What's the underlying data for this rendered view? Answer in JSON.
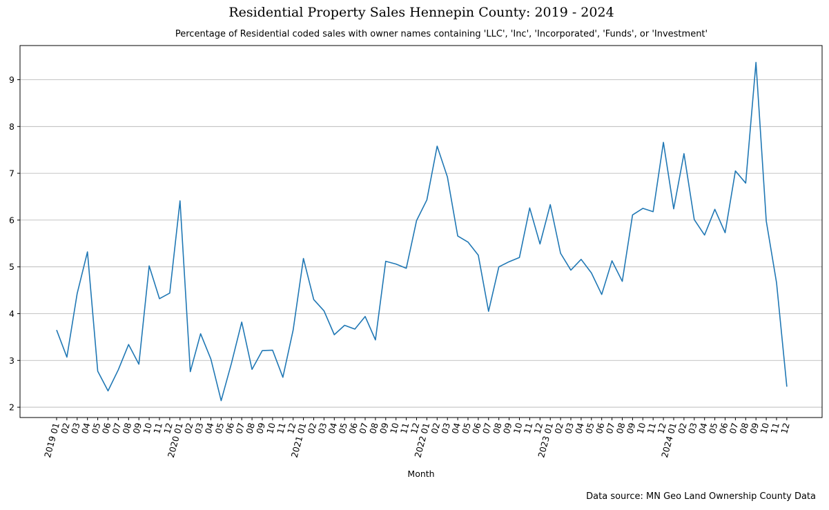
{
  "chart_data": {
    "type": "line",
    "title": "Residential Property Sales Hennepin County: 2019 - 2024",
    "subtitle": "Percentage of Residential coded sales with owner names containing 'LLC', 'Inc', 'Incorporated', 'Funds', or 'Investment'",
    "xlabel": "Month",
    "ylabel": "",
    "source": "Data source: MN Geo Land Ownership County Data",
    "grid": "horizontal",
    "ylim": [
      1.78,
      9.73
    ],
    "yticks": [
      "2",
      "3",
      "4",
      "5",
      "6",
      "7",
      "8",
      "9"
    ],
    "x": [
      "2019 01",
      "02",
      "03",
      "04",
      "05",
      "06",
      "07",
      "08",
      "09",
      "10",
      "11",
      "12",
      "2020 01",
      "02",
      "03",
      "04",
      "05",
      "06",
      "07",
      "08",
      "09",
      "10",
      "11",
      "12",
      "2021 01",
      "02",
      "03",
      "04",
      "05",
      "06",
      "07",
      "08",
      "09",
      "10",
      "11",
      "12",
      "2022 01",
      "02",
      "03",
      "04",
      "05",
      "06",
      "07",
      "08",
      "09",
      "10",
      "11",
      "12",
      "2023 01",
      "02",
      "03",
      "04",
      "05",
      "06",
      "07",
      "08",
      "09",
      "10",
      "11",
      "12",
      "2024 01",
      "02",
      "03",
      "04",
      "05",
      "06",
      "07",
      "08",
      "09",
      "10",
      "11",
      "12"
    ],
    "series": [
      {
        "color": "#1f77b4",
        "values": [
          3.65,
          3.07,
          4.43,
          5.32,
          2.77,
          2.35,
          2.8,
          3.34,
          2.92,
          5.02,
          4.32,
          4.44,
          6.41,
          2.76,
          3.57,
          3.03,
          2.14,
          2.94,
          3.82,
          2.81,
          3.21,
          3.22,
          2.64,
          3.65,
          5.18,
          4.3,
          4.06,
          3.55,
          3.75,
          3.67,
          3.94,
          3.44,
          5.12,
          5.06,
          4.97,
          5.99,
          6.43,
          7.58,
          6.92,
          5.66,
          5.53,
          5.25,
          4.05,
          5.0,
          5.11,
          5.2,
          6.26,
          5.49,
          6.33,
          5.29,
          4.93,
          5.16,
          4.87,
          4.41,
          5.13,
          4.69,
          6.11,
          6.25,
          6.18,
          7.66,
          6.24,
          7.42,
          6.01,
          5.68,
          6.23,
          5.73,
          7.05,
          6.79,
          9.37,
          5.98,
          4.66,
          2.44
        ]
      }
    ]
  }
}
